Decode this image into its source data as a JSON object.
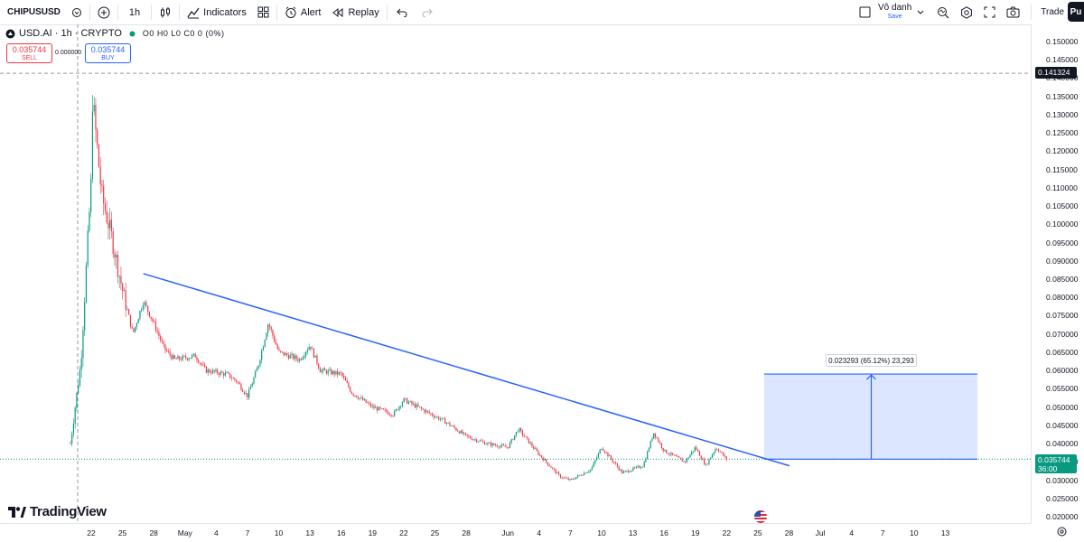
{
  "toolbar": {
    "symbol": "CHIPUSUSD",
    "interval": "1h",
    "indicators_label": "Indicators",
    "alert_label": "Alert",
    "replay_label": "Replay",
    "layout_name": "Vô danh",
    "layout_status": "Save",
    "trade_label": "Trade",
    "pu_label": "Pu"
  },
  "legend": {
    "title": "USD.AI · 1h · CRYPTO",
    "ohlc": "O0 H0 L0 C0 0 (0%)"
  },
  "order_panel": {
    "sell_price": "0.035744",
    "sell_label": "SELL",
    "spread": "0.000000",
    "buy_price": "0.035744",
    "buy_label": "BUY"
  },
  "price_axis": {
    "labels": [
      "0.150000",
      "0.145000",
      "0.140000",
      "0.135000",
      "0.130000",
      "0.125000",
      "0.120000",
      "0.115000",
      "0.110000",
      "0.105000",
      "0.100000",
      "0.095000",
      "0.090000",
      "0.085000",
      "0.080000",
      "0.075000",
      "0.070000",
      "0.065000",
      "0.060000",
      "0.055000",
      "0.050000",
      "0.045000",
      "0.040000",
      "0.035000",
      "0.030000",
      "0.025000",
      "0.020000"
    ],
    "crosshair_price": "0.141324",
    "last_price": "0.035744",
    "countdown": "36:00"
  },
  "time_axis": {
    "labels": [
      "22",
      "25",
      "28",
      "May",
      "4",
      "7",
      "10",
      "13",
      "16",
      "19",
      "22",
      "25",
      "28",
      "Jun",
      "4",
      "7",
      "10",
      "13",
      "16",
      "19",
      "22",
      "25",
      "28",
      "Jul",
      "4",
      "7",
      "10",
      "13"
    ]
  },
  "measure": {
    "label": "0.023293 (65.12%) 23,293"
  },
  "chart_data": {
    "type": "candlestick",
    "ylim": [
      0.02,
      0.15
    ],
    "last_price": 0.035744,
    "trendline": {
      "start": [
        "Apr 27",
        0.0865
      ],
      "end": [
        "Jun 25",
        0.0365
      ]
    },
    "measure_range": {
      "from": 0.035744,
      "to": 0.059037,
      "change": 0.023293,
      "percent": 65.12
    },
    "close_path": [
      [
        "Apr 20",
        0.04
      ],
      [
        "Apr 21",
        0.062
      ],
      [
        "Apr 22",
        0.112
      ],
      [
        "Apr 22",
        0.138
      ],
      [
        "Apr 23",
        0.108
      ],
      [
        "Apr 24",
        0.096
      ],
      [
        "Apr 25",
        0.082
      ],
      [
        "Apr 26",
        0.07
      ],
      [
        "Apr 27",
        0.079
      ],
      [
        "Apr 28",
        0.073
      ],
      [
        "Apr 29",
        0.066
      ],
      [
        "Apr 30",
        0.063
      ],
      [
        "May 2",
        0.064
      ],
      [
        "May 3",
        0.06
      ],
      [
        "May 5",
        0.059
      ],
      [
        "May 6",
        0.057
      ],
      [
        "May 7",
        0.053
      ],
      [
        "May 8",
        0.061
      ],
      [
        "May 9",
        0.073
      ],
      [
        "May 10",
        0.065
      ],
      [
        "May 12",
        0.063
      ],
      [
        "May 13",
        0.067
      ],
      [
        "May 14",
        0.06
      ],
      [
        "May 16",
        0.059
      ],
      [
        "May 17",
        0.054
      ],
      [
        "May 19",
        0.05
      ],
      [
        "May 21",
        0.048
      ],
      [
        "May 22",
        0.052
      ],
      [
        "May 24",
        0.049
      ],
      [
        "May 26",
        0.046
      ],
      [
        "May 28",
        0.042
      ],
      [
        "May 30",
        0.04
      ],
      [
        "Jun 1",
        0.039
      ],
      [
        "Jun 2",
        0.044
      ],
      [
        "Jun 4",
        0.037
      ],
      [
        "Jun 6",
        0.031
      ],
      [
        "Jun 7",
        0.03
      ],
      [
        "Jun 9",
        0.033
      ],
      [
        "Jun 10",
        0.039
      ],
      [
        "Jun 12",
        0.032
      ],
      [
        "Jun 14",
        0.034
      ],
      [
        "Jun 15",
        0.043
      ],
      [
        "Jun 16",
        0.038
      ],
      [
        "Jun 18",
        0.035
      ],
      [
        "Jun 19",
        0.039
      ],
      [
        "Jun 20",
        0.034
      ],
      [
        "Jun 21",
        0.039
      ],
      [
        "Jun 22",
        0.0357
      ]
    ]
  },
  "colors": {
    "up": "#089981",
    "down": "#f23645",
    "trendline": "#2962ff",
    "measure_fill": "#2962ff",
    "brand": "#131722"
  }
}
